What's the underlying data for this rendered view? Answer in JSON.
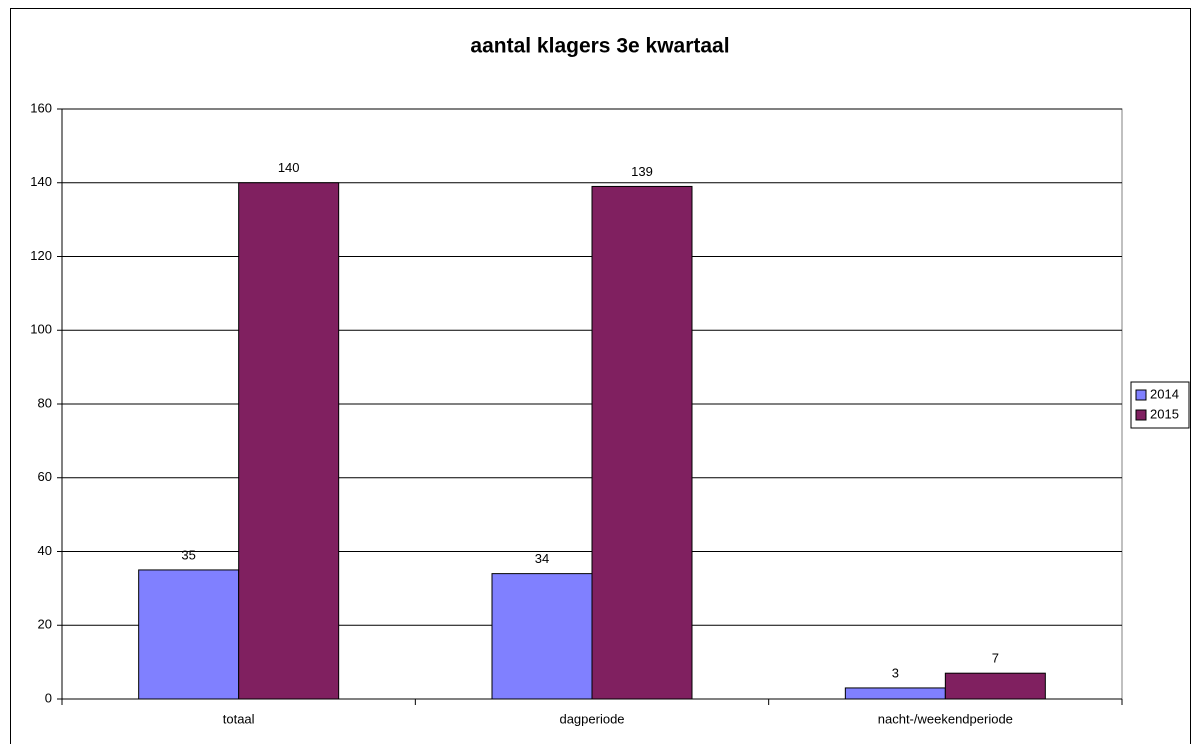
{
  "chart_data": {
    "type": "bar",
    "title": "aantal klagers 3e kwartaal",
    "categories": [
      "totaal",
      "dagperiode",
      "nacht-/weekendperiode"
    ],
    "series": [
      {
        "name": "2014",
        "color": "#8080ff",
        "values": [
          35,
          34,
          3
        ]
      },
      {
        "name": "2015",
        "color": "#802060",
        "values": [
          140,
          139,
          7
        ]
      }
    ],
    "ylim": [
      0,
      160
    ],
    "yticks": [
      0,
      20,
      40,
      60,
      80,
      100,
      120,
      140,
      160
    ],
    "grid": true,
    "legend": "right"
  }
}
